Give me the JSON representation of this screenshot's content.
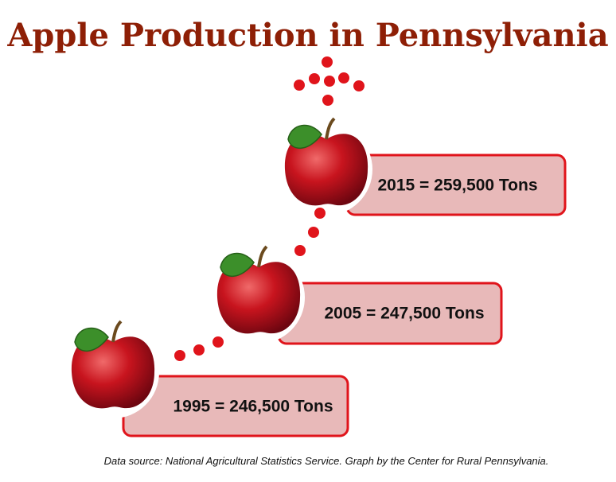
{
  "title": "Apple Production in Pennsylvania",
  "items": [
    {
      "label": "2015 = 259,500 Tons"
    },
    {
      "label": "2005 = 247,500 Tons"
    },
    {
      "label": "1995 = 246,500 Tons"
    }
  ],
  "source": "Data source: National Agricultural Statistics Service. Graph by the Center for Rural Pennsylvania."
}
